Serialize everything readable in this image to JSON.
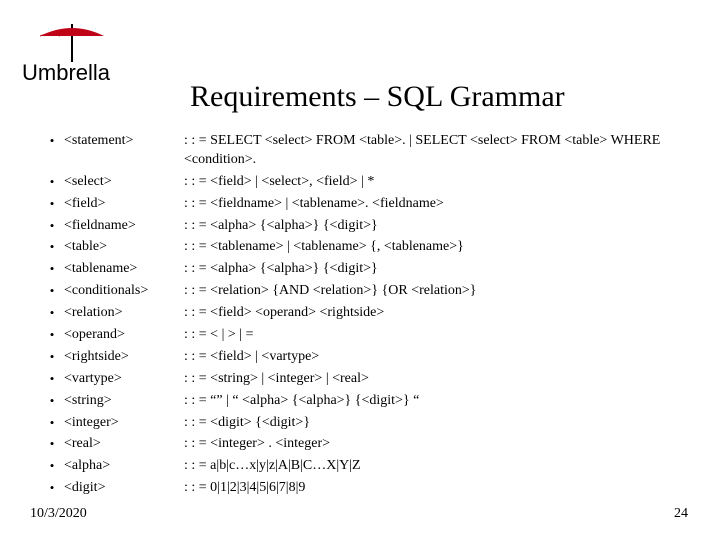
{
  "logo_text": "Umbrella",
  "title": "Requirements – SQL Grammar",
  "footer": {
    "date": "10/3/2020",
    "page": "24"
  },
  "colors": {
    "umbrella_red": "#c00418",
    "text": "#000000",
    "background": "#ffffff"
  },
  "grammar_rules": [
    {
      "lhs": "<statement>",
      "rhs": ": : = SELECT <select> FROM <table>. | SELECT <select> FROM <table> WHERE <condition>."
    },
    {
      "lhs": "<select>",
      "rhs": ": : = <field> | <select>, <field> | *"
    },
    {
      "lhs": "<field>",
      "rhs": ": : = <fieldname> | <tablename>. <fieldname>"
    },
    {
      "lhs": "<fieldname>",
      "rhs": ": : = <alpha> {<alpha>} {<digit>}"
    },
    {
      "lhs": "<table>",
      "rhs": ": : = <tablename> | <tablename> {, <tablename>}"
    },
    {
      "lhs": "<tablename>",
      "rhs": ": : = <alpha> {<alpha>} {<digit>}"
    },
    {
      "lhs": "<conditionals>",
      "rhs": ": : = <relation> {AND <relation>} {OR <relation>}"
    },
    {
      "lhs": "<relation>",
      "rhs": ": : = <field> <operand> <rightside>"
    },
    {
      "lhs": "<operand>",
      "rhs": ": : = < | > | ="
    },
    {
      "lhs": "<rightside>",
      "rhs": ": : = <field> | <vartype>"
    },
    {
      "lhs": "<vartype>",
      "rhs": ": : = <string> | <integer> | <real>"
    },
    {
      "lhs": "<string>",
      "rhs": ": : = “” | “ <alpha> {<alpha>} {<digit>} “"
    },
    {
      "lhs": "<integer>",
      "rhs": ": : = <digit> {<digit>}"
    },
    {
      "lhs": "<real>",
      "rhs": ": : = <integer> . <integer>"
    },
    {
      "lhs": "<alpha>",
      "rhs": ": : = a|b|c…x|y|z|A|B|C…X|Y|Z"
    },
    {
      "lhs": "<digit>",
      "rhs": ": : = 0|1|2|3|4|5|6|7|8|9"
    }
  ],
  "typography": {
    "title_fontsize": 30,
    "body_fontsize": 14,
    "font_family": "Times New Roman"
  }
}
